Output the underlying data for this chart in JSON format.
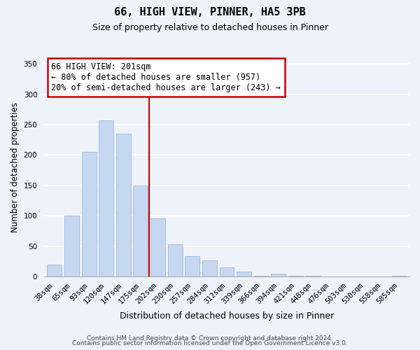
{
  "title": "66, HIGH VIEW, PINNER, HA5 3PB",
  "subtitle": "Size of property relative to detached houses in Pinner",
  "xlabel": "Distribution of detached houses by size in Pinner",
  "ylabel": "Number of detached properties",
  "bar_labels": [
    "38sqm",
    "65sqm",
    "93sqm",
    "120sqm",
    "147sqm",
    "175sqm",
    "202sqm",
    "230sqm",
    "257sqm",
    "284sqm",
    "312sqm",
    "339sqm",
    "366sqm",
    "394sqm",
    "421sqm",
    "448sqm",
    "476sqm",
    "503sqm",
    "530sqm",
    "558sqm",
    "585sqm"
  ],
  "bar_values": [
    19,
    100,
    205,
    257,
    235,
    150,
    96,
    53,
    33,
    27,
    15,
    8,
    1,
    5,
    1,
    1,
    0,
    0,
    0,
    0,
    1
  ],
  "bar_color": "#c5d8f0",
  "bar_edge_color": "#a0b8d8",
  "marker_index": 6,
  "marker_color": "#cc0000",
  "ylim": [
    0,
    360
  ],
  "yticks": [
    0,
    50,
    100,
    150,
    200,
    250,
    300,
    350
  ],
  "annotation_title": "66 HIGH VIEW: 201sqm",
  "annotation_line1": "← 80% of detached houses are smaller (957)",
  "annotation_line2": "20% of semi-detached houses are larger (243) →",
  "annotation_box_color": "#ffffff",
  "annotation_box_edge": "#cc0000",
  "footer_line1": "Contains HM Land Registry data © Crown copyright and database right 2024.",
  "footer_line2": "Contains public sector information licensed under the Open Government Licence v3.0.",
  "background_color": "#eef2fb",
  "grid_color": "#ffffff",
  "title_fontsize": 11,
  "subtitle_fontsize": 9,
  "ylabel_fontsize": 8.5,
  "xlabel_fontsize": 9,
  "tick_fontsize": 7.5,
  "footer_fontsize": 6.5,
  "ann_fontsize": 8.5
}
